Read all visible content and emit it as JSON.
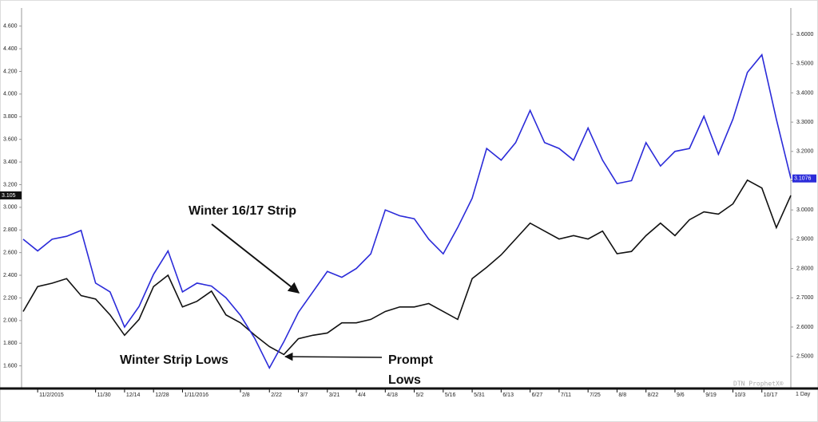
{
  "chart_data": {
    "type": "line",
    "categories": [
      null,
      "11/2/2015",
      null,
      null,
      null,
      "11/30",
      null,
      "12/14",
      null,
      "12/28",
      null,
      "1/11/2016",
      null,
      null,
      null,
      "2/8",
      null,
      "2/22",
      null,
      "3/7",
      null,
      "3/21",
      null,
      "4/4",
      null,
      "4/18",
      null,
      "5/2",
      null,
      "5/16",
      null,
      "5/31",
      null,
      "6/13",
      null,
      "6/27",
      null,
      "7/11",
      null,
      "7/25",
      null,
      "8/8",
      null,
      "8/22",
      null,
      "9/6",
      null,
      "9/19",
      null,
      "10/3",
      null,
      "10/17",
      null,
      null
    ],
    "series": [
      {
        "color": "#111111",
        "axis": "y",
        "values": [
          2.08,
          2.3,
          2.33,
          2.37,
          2.22,
          2.19,
          2.05,
          1.87,
          2.01,
          2.3,
          2.4,
          2.12,
          2.17,
          2.26,
          2.05,
          1.98,
          1.87,
          1.77,
          1.7,
          1.84,
          1.87,
          1.89,
          1.98,
          1.98,
          2.01,
          2.08,
          2.12,
          2.12,
          2.15,
          2.08,
          2.01,
          2.37,
          2.47,
          2.58,
          2.72,
          2.86,
          2.79,
          2.72,
          2.75,
          2.72,
          2.79,
          2.59,
          2.61,
          2.75,
          2.86,
          2.75,
          2.89,
          2.96,
          2.94,
          3.03,
          3.24,
          3.17,
          2.82,
          3.105
        ],
        "current": {
          "value": 3.105,
          "label": "3.105"
        }
      },
      {
        "color": "#2b2bd9",
        "axis": "y2",
        "values": [
          2.9,
          2.86,
          2.9,
          2.91,
          2.93,
          2.75,
          2.72,
          2.6,
          2.67,
          2.78,
          2.86,
          2.72,
          2.75,
          2.74,
          2.7,
          2.64,
          2.56,
          2.46,
          2.55,
          2.65,
          2.72,
          2.79,
          2.77,
          2.8,
          2.85,
          3.0,
          2.98,
          2.97,
          2.9,
          2.85,
          2.94,
          3.04,
          3.21,
          3.17,
          3.23,
          3.34,
          3.23,
          3.21,
          3.17,
          3.28,
          3.17,
          3.09,
          3.1,
          3.23,
          3.15,
          3.2,
          3.21,
          3.32,
          3.19,
          3.31,
          3.47,
          3.53,
          3.31,
          3.1076
        ],
        "current": {
          "value": 3.1076,
          "label": "3.1076"
        }
      }
    ],
    "ylim": [
      1.4,
      4.76
    ],
    "yticks": [
      {
        "value": 1.6,
        "label": "1.600"
      },
      {
        "value": 1.8,
        "label": "1.800"
      },
      {
        "value": 2.0,
        "label": "2.000"
      },
      {
        "value": 2.2,
        "label": "2.200"
      },
      {
        "value": 2.4,
        "label": "2.400"
      },
      {
        "value": 2.6,
        "label": "2.600"
      },
      {
        "value": 2.8,
        "label": "2.800"
      },
      {
        "value": 3.0,
        "label": "3.000"
      },
      {
        "value": 3.2,
        "label": "3.200"
      },
      {
        "value": 3.4,
        "label": "3.400"
      },
      {
        "value": 3.6,
        "label": "3.600"
      },
      {
        "value": 3.8,
        "label": "3.800"
      },
      {
        "value": 4.0,
        "label": "4.000"
      },
      {
        "value": 4.2,
        "label": "4.200"
      },
      {
        "value": 4.4,
        "label": "4.400"
      },
      {
        "value": 4.6,
        "label": "4.600"
      }
    ],
    "y2lim": [
      2.39,
      3.69
    ],
    "y2ticks": [
      {
        "value": 2.5,
        "label": "2.5000"
      },
      {
        "value": 2.6,
        "label": "2.6000"
      },
      {
        "value": 2.7,
        "label": "2.7000"
      },
      {
        "value": 2.8,
        "label": "2.8000"
      },
      {
        "value": 2.9,
        "label": "2.9000"
      },
      {
        "value": 3.0,
        "label": "3.0000"
      },
      {
        "value": 3.1,
        "label": "3.1000"
      },
      {
        "value": 3.2,
        "label": "3.2000"
      },
      {
        "value": 3.3,
        "label": "3.3000"
      },
      {
        "value": 3.4,
        "label": "3.4000"
      },
      {
        "value": 3.5,
        "label": "3.5000"
      },
      {
        "value": 3.6,
        "label": "3.6000"
      }
    ],
    "annotations": [
      "Winter 16/17 Strip",
      "Winter Strip Lows",
      "Prompt",
      "Lows"
    ],
    "watermark": "DTN ProphetX®",
    "period": "1 Day"
  }
}
